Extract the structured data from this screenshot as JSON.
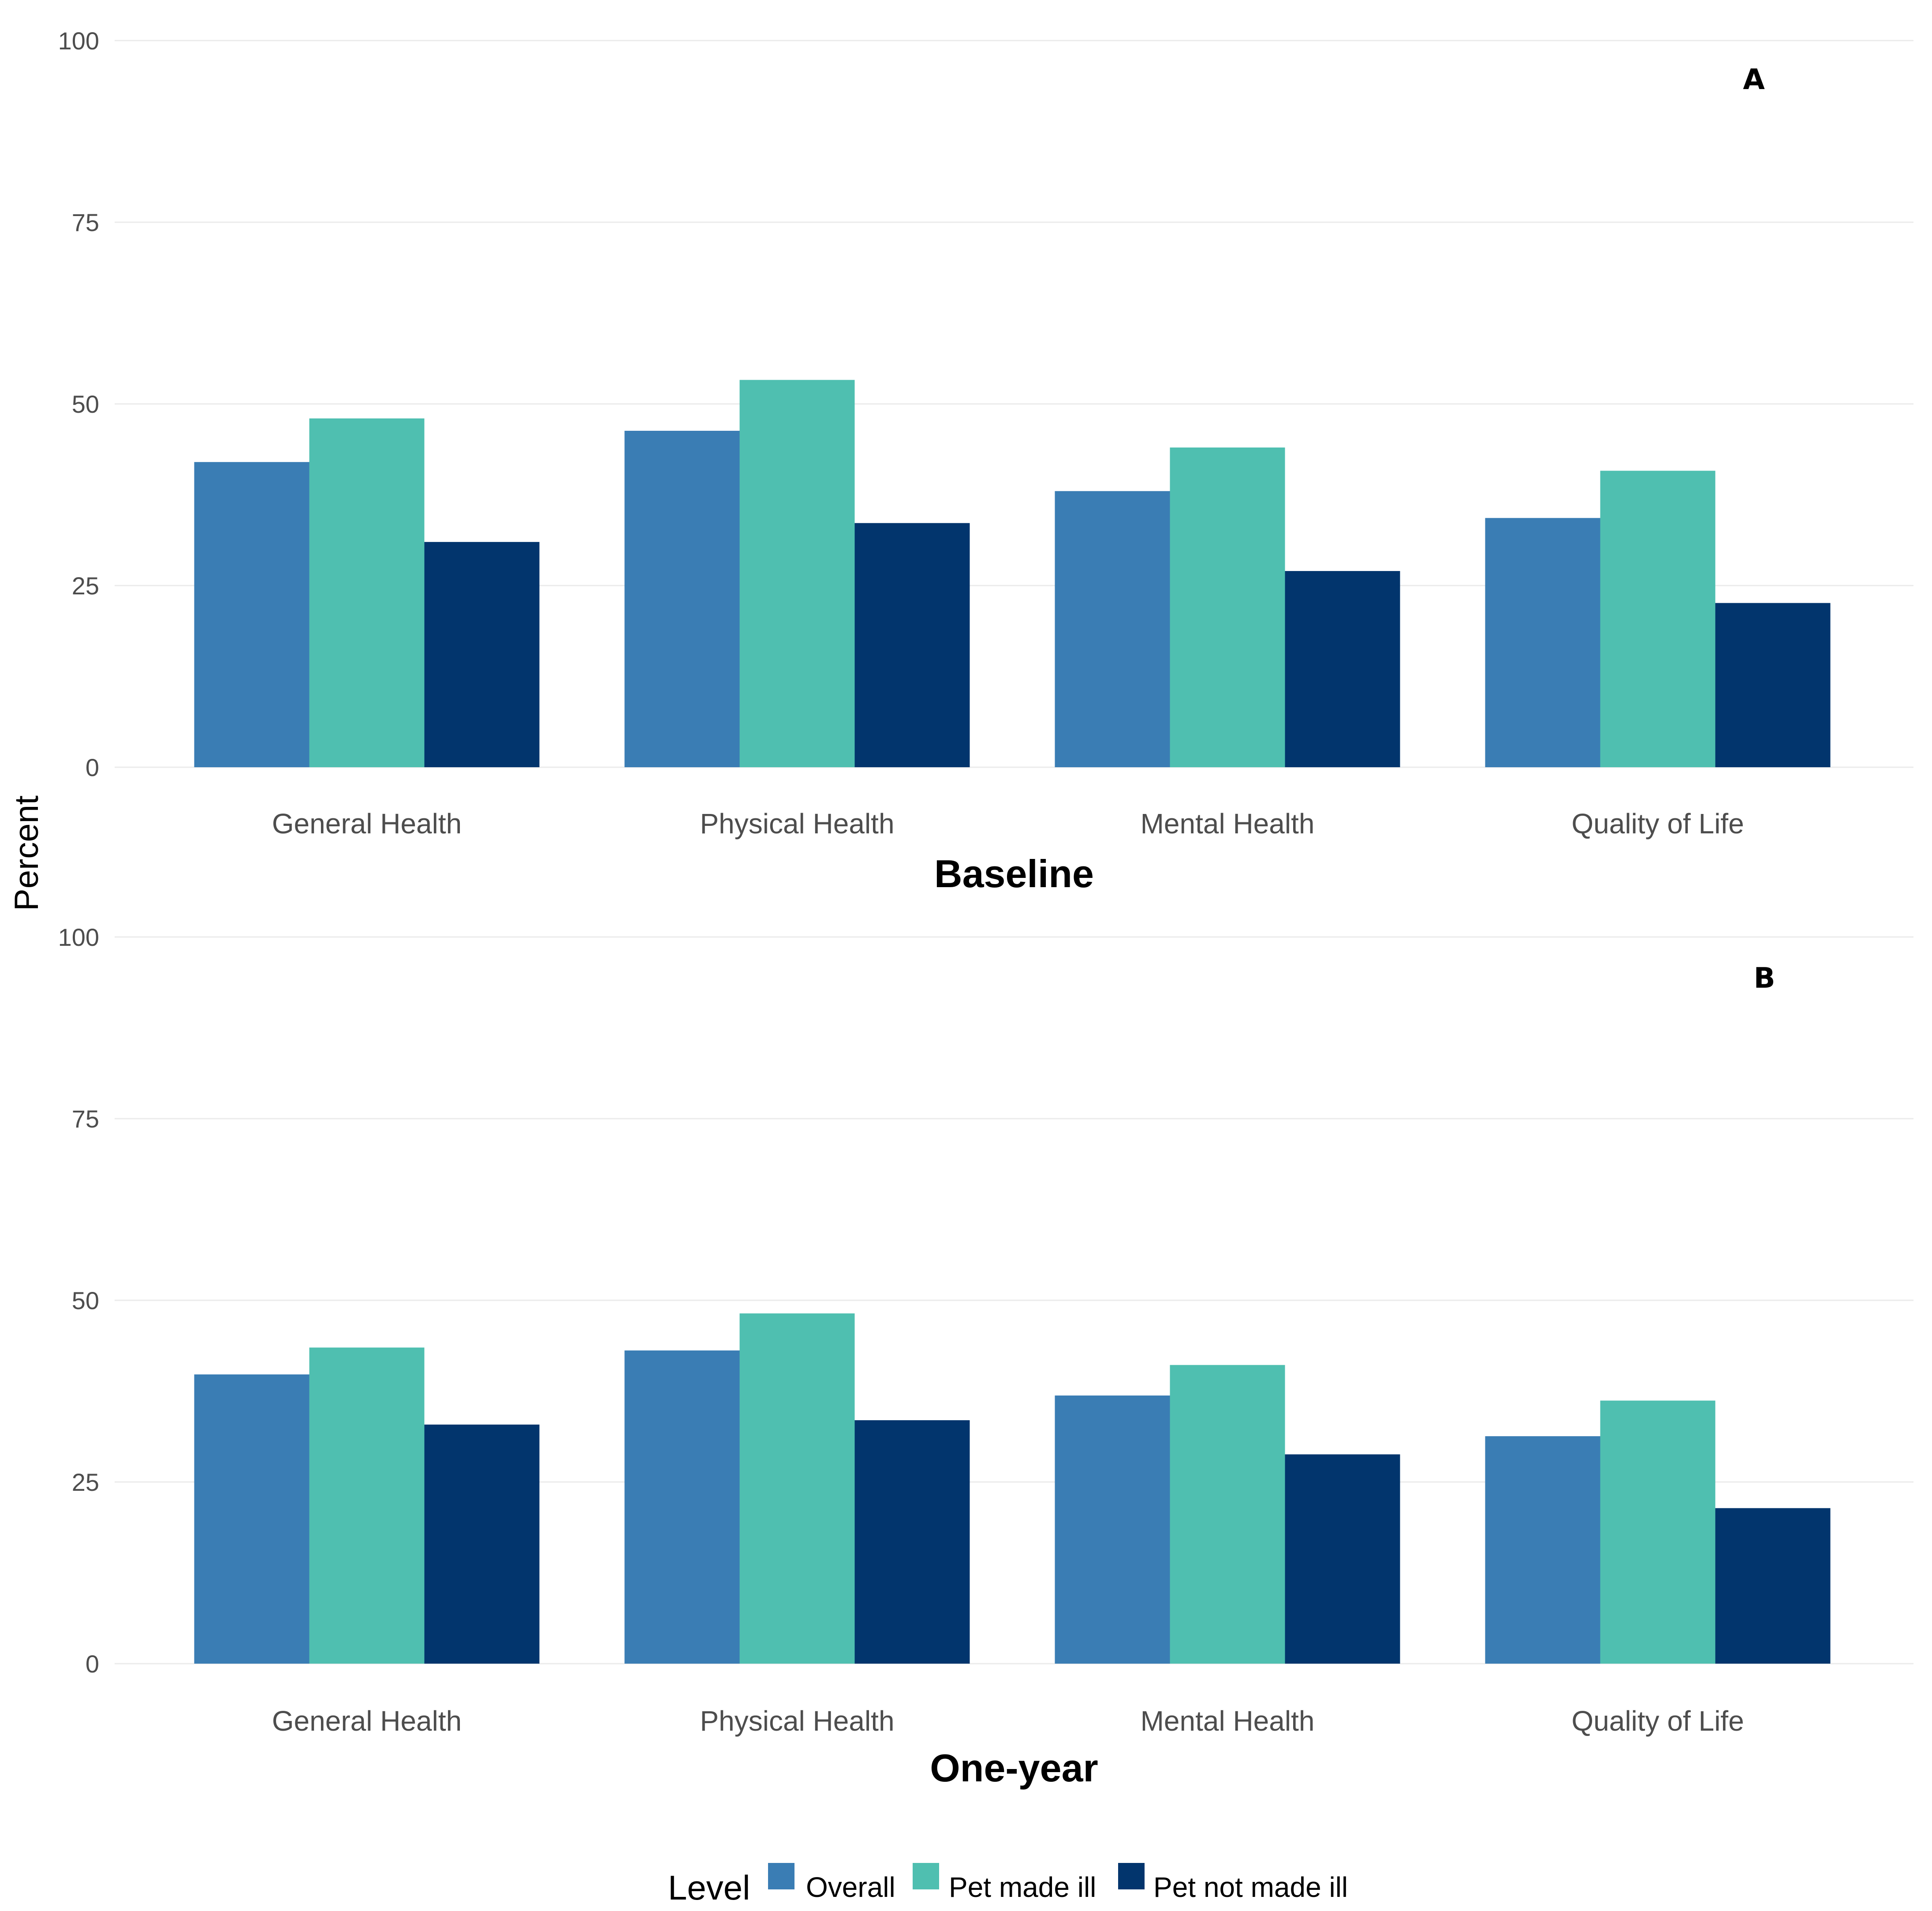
{
  "chart_data": {
    "type": "bar",
    "ylabel": "Percent",
    "ylim": [
      0,
      100
    ],
    "yticks": [
      0,
      25,
      50,
      75,
      100
    ],
    "categories": [
      "General Health",
      "Physical Health",
      "Mental Health",
      "Quality of Life"
    ],
    "legend": {
      "title": "Level",
      "placement": "bottom",
      "entries": [
        {
          "name": "Overall",
          "color": "#3a7db4"
        },
        {
          "name": "Pet made ill",
          "color": "#4fbfb0"
        },
        {
          "name": "Pet not made ill",
          "color": "#02356d"
        }
      ]
    },
    "panels": [
      {
        "tag": "A",
        "xlabel": "Baseline",
        "series": [
          {
            "name": "Overall",
            "values": [
              42,
              46.3,
              38,
              34.3
            ]
          },
          {
            "name": "Pet made ill",
            "values": [
              48,
              53.3,
              44,
              40.8
            ]
          },
          {
            "name": "Pet not made ill",
            "values": [
              31,
              33.6,
              27,
              22.6
            ]
          }
        ]
      },
      {
        "tag": "B",
        "xlabel": "One-year",
        "series": [
          {
            "name": "Overall",
            "values": [
              39.8,
              43.1,
              36.9,
              31.3
            ]
          },
          {
            "name": "Pet made ill",
            "values": [
              43.5,
              48.2,
              41.1,
              36.2
            ]
          },
          {
            "name": "Pet not made ill",
            "values": [
              32.9,
              33.5,
              28.8,
              21.4
            ]
          }
        ]
      }
    ]
  }
}
